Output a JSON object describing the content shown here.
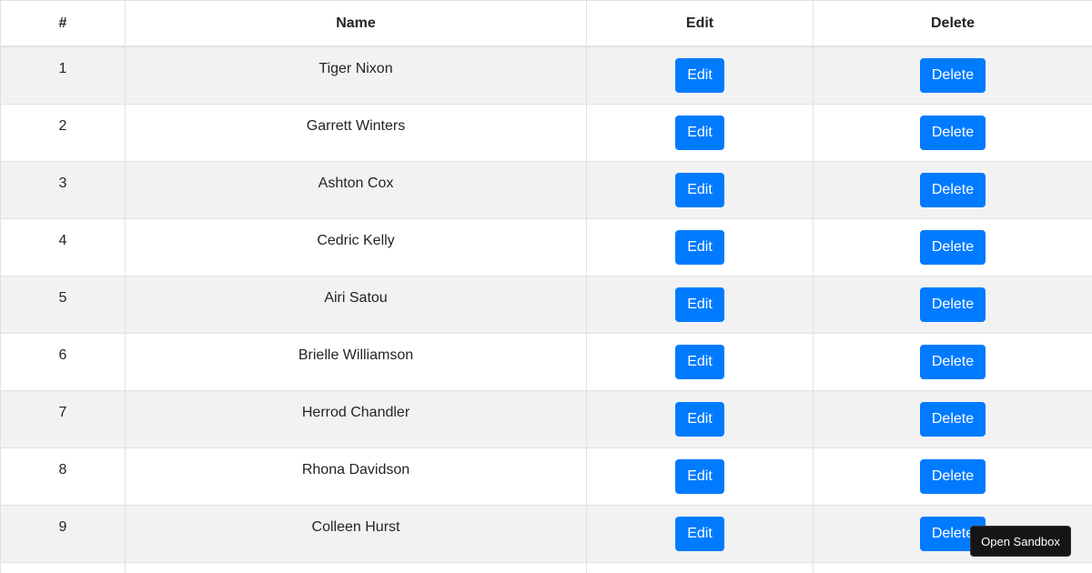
{
  "header": {
    "num": "#",
    "name": "Name",
    "edit": "Edit",
    "delete": "Delete"
  },
  "rows": [
    {
      "num": "1",
      "name": "Tiger Nixon"
    },
    {
      "num": "2",
      "name": "Garrett Winters"
    },
    {
      "num": "3",
      "name": "Ashton Cox"
    },
    {
      "num": "4",
      "name": "Cedric Kelly"
    },
    {
      "num": "5",
      "name": "Airi Satou"
    },
    {
      "num": "6",
      "name": "Brielle Williamson"
    },
    {
      "num": "7",
      "name": "Herrod Chandler"
    },
    {
      "num": "8",
      "name": "Rhona Davidson"
    },
    {
      "num": "9",
      "name": "Colleen Hurst"
    }
  ],
  "buttons": {
    "edit": "Edit",
    "delete": "Delete"
  },
  "sandbox_label": "Open Sandbox",
  "colors": {
    "button": "#007bff",
    "stripe": "#f2f2f2"
  }
}
